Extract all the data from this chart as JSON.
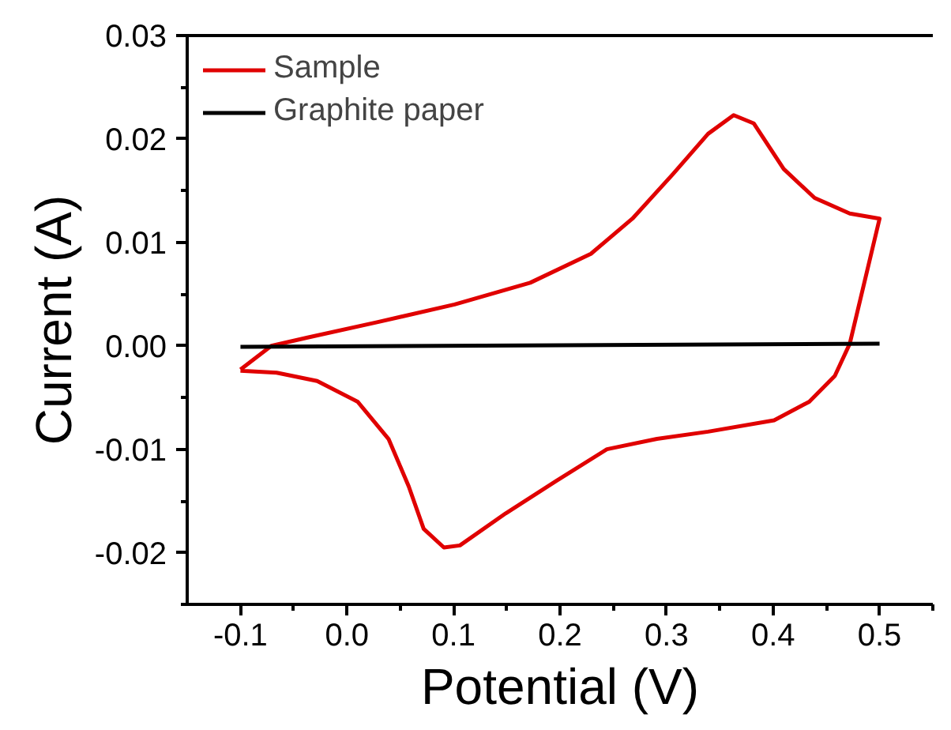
{
  "chart_data": {
    "type": "line",
    "xlabel": "Potential (V)",
    "ylabel": "Current (A)",
    "xlim": [
      -0.15,
      0.55
    ],
    "ylim": [
      -0.025,
      0.03
    ],
    "xticks": [
      {
        "value": -0.1,
        "label": "-0.1"
      },
      {
        "value": 0,
        "label": "0.0"
      },
      {
        "value": 0.1,
        "label": "0.1"
      },
      {
        "value": 0.2,
        "label": "0.2"
      },
      {
        "value": 0.3,
        "label": "0.3"
      },
      {
        "value": 0.4,
        "label": "0.4"
      },
      {
        "value": 0.5,
        "label": "0.5"
      }
    ],
    "yticks": [
      {
        "value": -0.02,
        "label": "-0.02"
      },
      {
        "value": -0.01,
        "label": "-0.01"
      },
      {
        "value": 0,
        "label": "0.00"
      },
      {
        "value": 0.01,
        "label": "0.01"
      },
      {
        "value": 0.02,
        "label": "0.02"
      },
      {
        "value": 0.03,
        "label": "0.03"
      }
    ],
    "grid": false,
    "legend": "top left",
    "line_style": "solid",
    "marker": "none",
    "series": [
      {
        "name": "Sample",
        "color": "#e00000",
        "x": [
          -0.1,
          -0.071,
          -0.037,
          0.029,
          0.101,
          0.172,
          0.229,
          0.268,
          0.306,
          0.339,
          0.363,
          0.382,
          0.41,
          0.439,
          0.472,
          0.5,
          0.472,
          0.458,
          0.434,
          0.401,
          0.339,
          0.291,
          0.244,
          0.196,
          0.149,
          0.106,
          0.091,
          0.072,
          0.058,
          0.039,
          0.01,
          -0.028,
          -0.066,
          -0.1
        ],
        "values": [
          -0.0023,
          0.0,
          0.0008,
          0.0023,
          0.004,
          0.0061,
          0.0089,
          0.0123,
          0.0166,
          0.0205,
          0.0223,
          0.0215,
          0.0171,
          0.0143,
          0.0128,
          0.0123,
          0.0002,
          -0.0029,
          -0.0054,
          -0.0072,
          -0.0083,
          -0.009,
          -0.01,
          -0.0131,
          -0.0162,
          -0.0193,
          -0.0195,
          -0.0177,
          -0.0136,
          -0.009,
          -0.0054,
          -0.0034,
          -0.0026,
          -0.0024
        ]
      },
      {
        "name": "Graphite paper",
        "color": "#000000",
        "x": [
          -0.1,
          0.5
        ],
        "values": [
          -0.0001,
          0.0002
        ]
      }
    ]
  }
}
